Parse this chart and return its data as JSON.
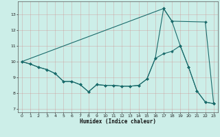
{
  "xlabel": "Humidex (Indice chaleur)",
  "bg_color": "#cceee8",
  "grid_color": "#bbdddd",
  "line_color": "#1a6b6b",
  "xlim": [
    -0.5,
    23.5
  ],
  "ylim": [
    6.8,
    13.8
  ],
  "xticks": [
    0,
    1,
    2,
    3,
    4,
    5,
    6,
    7,
    8,
    9,
    10,
    11,
    12,
    13,
    14,
    15,
    16,
    17,
    18,
    19,
    20,
    21,
    22,
    23
  ],
  "yticks": [
    7,
    8,
    9,
    10,
    11,
    12,
    13
  ],
  "line1_x": [
    0,
    1,
    2,
    3,
    4,
    5,
    6,
    7,
    8,
    9,
    10,
    11,
    12,
    13,
    14,
    15,
    16,
    17,
    18,
    19,
    20,
    21,
    22,
    23
  ],
  "line1_y": [
    10.0,
    9.85,
    9.65,
    9.5,
    9.25,
    8.75,
    8.75,
    8.55,
    8.1,
    8.55,
    8.5,
    8.5,
    8.45,
    8.45,
    8.5,
    8.9,
    10.2,
    10.5,
    10.65,
    11.0,
    9.65,
    8.15,
    7.45,
    7.35
  ],
  "line2_x": [
    0,
    1,
    2,
    3,
    4,
    5,
    6,
    7,
    8,
    9,
    10,
    11,
    12,
    13,
    14,
    15,
    16,
    17,
    18,
    19,
    20,
    21,
    22,
    23
  ],
  "line2_y": [
    10.0,
    9.85,
    9.65,
    9.5,
    9.25,
    8.75,
    8.75,
    8.55,
    8.1,
    8.55,
    8.5,
    8.5,
    8.45,
    8.45,
    8.5,
    8.9,
    10.2,
    13.35,
    12.55,
    11.0,
    9.65,
    8.15,
    7.45,
    7.35
  ],
  "line3_x": [
    0,
    17,
    18,
    22,
    23
  ],
  "line3_y": [
    10.0,
    13.35,
    12.55,
    12.5,
    7.35
  ]
}
